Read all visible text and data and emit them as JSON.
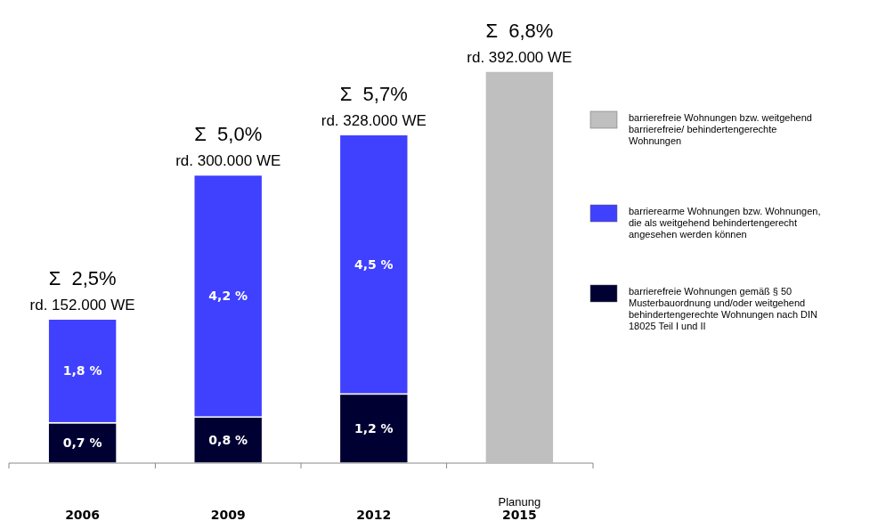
{
  "chart_data": {
    "type": "bar",
    "stacked": true,
    "categories": [
      "2006",
      "2009",
      "2012",
      "2015"
    ],
    "series": [
      {
        "name": "barrierefreie Wohnungen gemäß § 50 Musterbauordnung und/oder weitgehend behindertengerechte Wohnungen nach DIN 18025 Teil I und II",
        "color": "#000033",
        "values": [
          0.7,
          0.8,
          1.2,
          null
        ],
        "value_labels": [
          "0,7 %",
          "0,8 %",
          "1,2 %",
          null
        ]
      },
      {
        "name": "barrierearme Wohnungen bzw. Wohnungen, die als weitgehend behindertengerecht angesehen werden können",
        "color": "#4040ff",
        "values": [
          1.8,
          4.2,
          4.5,
          null
        ],
        "value_labels": [
          "1,8 %",
          "4,2 %",
          "4,5 %",
          null
        ]
      },
      {
        "name": "barrierefreie Wohnungen bzw. weitgehend barrierefreie/ behindertengerechte Wohnungen",
        "color": "#bfbfbf",
        "values": [
          null,
          null,
          null,
          6.8
        ]
      }
    ],
    "totals": [
      "Σ  2,5%",
      "Σ  5,0%",
      "Σ  5,7%",
      "Σ  6,8%"
    ],
    "annotations": [
      "rd. 152.000 WE",
      "rd. 300.000 WE",
      "rd. 328.000 WE",
      "rd. 392.000 WE",
      "Planung"
    ],
    "legend": "right"
  }
}
